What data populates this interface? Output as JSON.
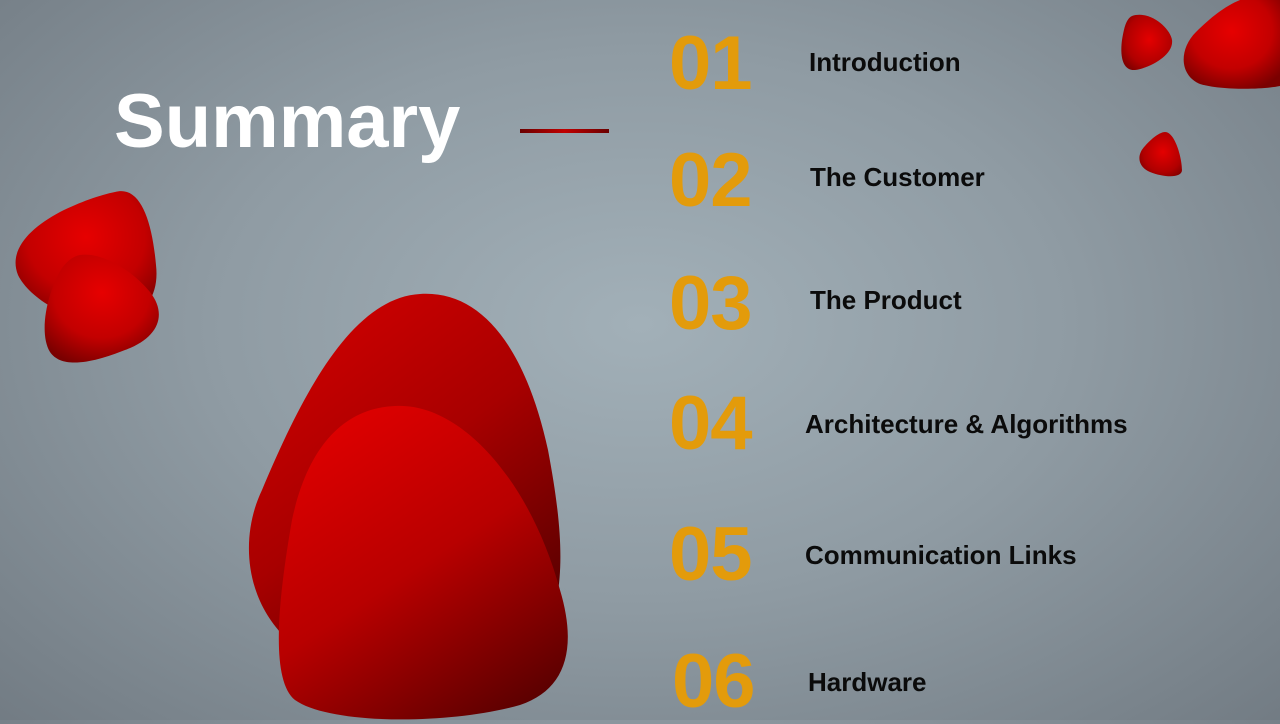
{
  "slide": {
    "title": "Summary",
    "accent_color": "#c00000",
    "number_color": "#e39b0b",
    "agenda": [
      {
        "number": "01",
        "label": "Introduction"
      },
      {
        "number": "02",
        "label": "The Customer"
      },
      {
        "number": "03",
        "label": "The Product"
      },
      {
        "number": "04",
        "label": "Architecture & Algorithms"
      },
      {
        "number": "05",
        "label": "Communication Links"
      },
      {
        "number": "06",
        "label": "Hardware"
      }
    ]
  }
}
